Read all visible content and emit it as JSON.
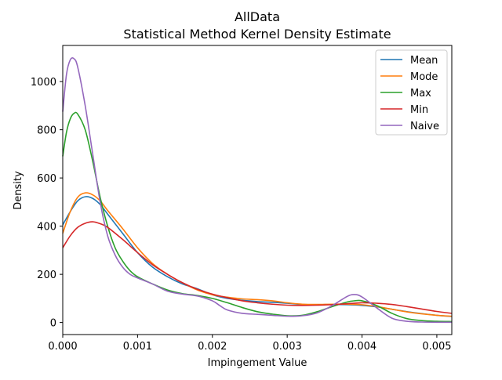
{
  "chart_data": {
    "type": "line",
    "title_line1": "AllData",
    "title_line2": "Statistical Method Kernel Density Estimate",
    "xlabel": "Impingement Value",
    "ylabel": "Density",
    "xlim": [
      0,
      0.0052
    ],
    "ylim": [
      -50,
      1150
    ],
    "x_ticks": [
      0,
      0.001,
      0.002,
      0.003,
      0.004,
      0.005
    ],
    "x_tick_labels": [
      "0.000",
      "0.001",
      "0.002",
      "0.003",
      "0.004",
      "0.005"
    ],
    "y_ticks": [
      0,
      200,
      400,
      600,
      800,
      1000
    ],
    "y_tick_labels": [
      "0",
      "200",
      "400",
      "600",
      "800",
      "1000"
    ],
    "grid": false,
    "legend_position": "top-right",
    "series": [
      {
        "name": "Mean",
        "color": "#1f77b4",
        "points": [
          [
            0,
            405
          ],
          [
            0.0001,
            460
          ],
          [
            0.0002,
            505
          ],
          [
            0.0003,
            522
          ],
          [
            0.0004,
            515
          ],
          [
            0.0005,
            490
          ],
          [
            0.0006,
            450
          ],
          [
            0.0008,
            370
          ],
          [
            0.001,
            290
          ],
          [
            0.0012,
            230
          ],
          [
            0.0014,
            190
          ],
          [
            0.0016,
            160
          ],
          [
            0.0018,
            140
          ],
          [
            0.002,
            115
          ],
          [
            0.0022,
            100
          ],
          [
            0.0024,
            92
          ],
          [
            0.0026,
            87
          ],
          [
            0.0028,
            84
          ],
          [
            0.003,
            80
          ],
          [
            0.0032,
            75
          ],
          [
            0.0034,
            74
          ],
          [
            0.0036,
            75
          ],
          [
            0.0038,
            74
          ],
          [
            0.004,
            71
          ],
          [
            0.0042,
            65
          ],
          [
            0.0044,
            55
          ],
          [
            0.0046,
            45
          ],
          [
            0.0048,
            37
          ],
          [
            0.005,
            30
          ],
          [
            0.0052,
            25
          ]
        ]
      },
      {
        "name": "Mode",
        "color": "#ff7f0e",
        "points": [
          [
            0,
            370
          ],
          [
            0.0001,
            460
          ],
          [
            0.0002,
            520
          ],
          [
            0.0003,
            538
          ],
          [
            0.0004,
            530
          ],
          [
            0.0005,
            505
          ],
          [
            0.0006,
            465
          ],
          [
            0.0008,
            390
          ],
          [
            0.001,
            310
          ],
          [
            0.0012,
            245
          ],
          [
            0.0014,
            200
          ],
          [
            0.0016,
            165
          ],
          [
            0.0018,
            135
          ],
          [
            0.002,
            115
          ],
          [
            0.0022,
            105
          ],
          [
            0.0024,
            98
          ],
          [
            0.0026,
            95
          ],
          [
            0.0028,
            90
          ],
          [
            0.003,
            82
          ],
          [
            0.0032,
            76
          ],
          [
            0.0034,
            75
          ],
          [
            0.0036,
            76
          ],
          [
            0.0038,
            76
          ],
          [
            0.004,
            74
          ],
          [
            0.0042,
            66
          ],
          [
            0.0044,
            55
          ],
          [
            0.0046,
            44
          ],
          [
            0.0048,
            36
          ],
          [
            0.005,
            30
          ],
          [
            0.0052,
            26
          ]
        ]
      },
      {
        "name": "Max",
        "color": "#2ca02c",
        "points": [
          [
            0,
            690
          ],
          [
            5e-05,
            790
          ],
          [
            0.0001,
            845
          ],
          [
            0.00015,
            868
          ],
          [
            0.0002,
            865
          ],
          [
            0.0003,
            800
          ],
          [
            0.0004,
            670
          ],
          [
            0.0005,
            520
          ],
          [
            0.0006,
            400
          ],
          [
            0.0007,
            310
          ],
          [
            0.0008,
            255
          ],
          [
            0.0009,
            215
          ],
          [
            0.001,
            190
          ],
          [
            0.0012,
            160
          ],
          [
            0.0014,
            135
          ],
          [
            0.0016,
            120
          ],
          [
            0.0018,
            112
          ],
          [
            0.002,
            100
          ],
          [
            0.0022,
            82
          ],
          [
            0.0024,
            62
          ],
          [
            0.0026,
            45
          ],
          [
            0.0028,
            35
          ],
          [
            0.003,
            28
          ],
          [
            0.0032,
            30
          ],
          [
            0.0034,
            45
          ],
          [
            0.0036,
            66
          ],
          [
            0.0038,
            85
          ],
          [
            0.0039,
            90
          ],
          [
            0.004,
            90
          ],
          [
            0.0042,
            70
          ],
          [
            0.0044,
            38
          ],
          [
            0.0046,
            16
          ],
          [
            0.0048,
            8
          ],
          [
            0.005,
            5
          ],
          [
            0.0052,
            4
          ]
        ]
      },
      {
        "name": "Min",
        "color": "#d62728",
        "points": [
          [
            0,
            310
          ],
          [
            0.0001,
            360
          ],
          [
            0.0002,
            395
          ],
          [
            0.0003,
            412
          ],
          [
            0.0004,
            418
          ],
          [
            0.0005,
            410
          ],
          [
            0.0006,
            395
          ],
          [
            0.0008,
            345
          ],
          [
            0.001,
            290
          ],
          [
            0.0012,
            240
          ],
          [
            0.0014,
            200
          ],
          [
            0.0016,
            165
          ],
          [
            0.0018,
            138
          ],
          [
            0.002,
            118
          ],
          [
            0.0022,
            103
          ],
          [
            0.0024,
            90
          ],
          [
            0.0026,
            82
          ],
          [
            0.0028,
            76
          ],
          [
            0.003,
            72
          ],
          [
            0.0032,
            71
          ],
          [
            0.0034,
            72
          ],
          [
            0.0036,
            74
          ],
          [
            0.0038,
            78
          ],
          [
            0.004,
            82
          ],
          [
            0.0042,
            80
          ],
          [
            0.0044,
            75
          ],
          [
            0.0046,
            66
          ],
          [
            0.0048,
            56
          ],
          [
            0.005,
            46
          ],
          [
            0.0052,
            38
          ]
        ]
      },
      {
        "name": "Naive",
        "color": "#9467bd",
        "points": [
          [
            0,
            875
          ],
          [
            5e-05,
            1030
          ],
          [
            0.0001,
            1090
          ],
          [
            0.00015,
            1095
          ],
          [
            0.0002,
            1060
          ],
          [
            0.0003,
            900
          ],
          [
            0.0004,
            700
          ],
          [
            0.0005,
            500
          ],
          [
            0.0006,
            360
          ],
          [
            0.0007,
            280
          ],
          [
            0.0008,
            230
          ],
          [
            0.0009,
            200
          ],
          [
            0.001,
            185
          ],
          [
            0.0012,
            160
          ],
          [
            0.0014,
            130
          ],
          [
            0.0016,
            118
          ],
          [
            0.0018,
            110
          ],
          [
            0.002,
            90
          ],
          [
            0.0021,
            70
          ],
          [
            0.0022,
            52
          ],
          [
            0.0024,
            38
          ],
          [
            0.0026,
            34
          ],
          [
            0.0028,
            30
          ],
          [
            0.003,
            26
          ],
          [
            0.0032,
            28
          ],
          [
            0.0034,
            40
          ],
          [
            0.0036,
            70
          ],
          [
            0.0038,
            108
          ],
          [
            0.0039,
            116
          ],
          [
            0.004,
            106
          ],
          [
            0.0042,
            60
          ],
          [
            0.0044,
            18
          ],
          [
            0.0046,
            5
          ],
          [
            0.0048,
            2
          ],
          [
            0.005,
            1
          ],
          [
            0.0052,
            1
          ]
        ]
      }
    ]
  }
}
